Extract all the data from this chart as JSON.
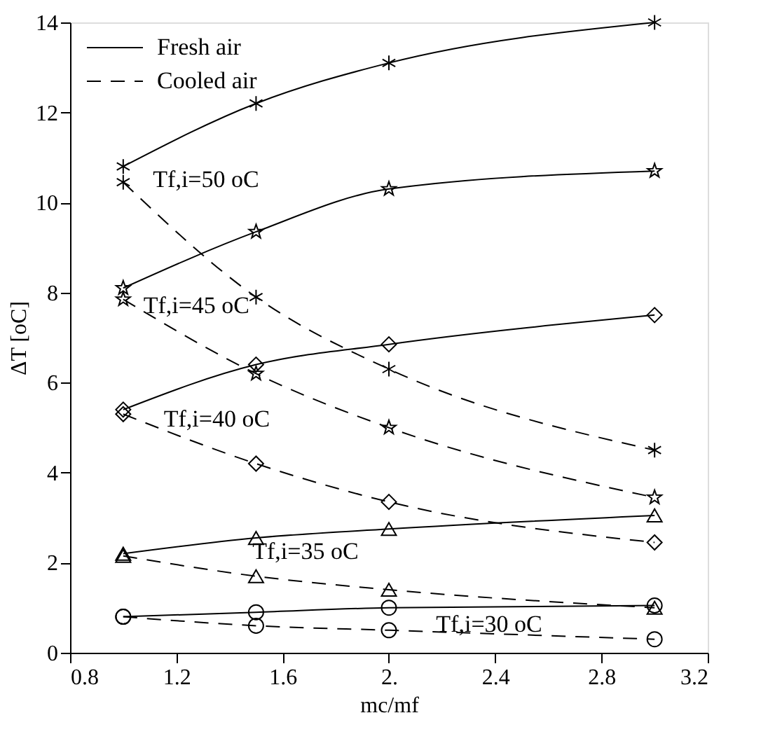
{
  "chart_data": {
    "type": "line",
    "xlabel": "mc/mf",
    "ylabel": "ΔT [oC]",
    "x": [
      1,
      1.5,
      2,
      3
    ],
    "xlim": [
      0.8,
      3.2
    ],
    "xticks": [
      0.8,
      1.2,
      1.6,
      {
        "value": 2,
        "label": "2."
      },
      2.4,
      2.8,
      3.2
    ],
    "ylim": [
      0,
      14
    ],
    "yticks": [
      0,
      2,
      4,
      6,
      8,
      10,
      12,
      14
    ],
    "grid": false,
    "legend": "top left",
    "series": [
      {
        "name": "Fresh air",
        "color": "#000000",
        "line_style": "solid",
        "marker": "cross",
        "values": [
          10.8,
          12.2,
          13.1,
          14.0
        ]
      },
      {
        "name": "Cooled air",
        "color": "#000000",
        "line_style": "dashed",
        "marker": "cross",
        "values": [
          10.45,
          7.9,
          6.3,
          4.5
        ]
      },
      {
        "color": "#000000",
        "line_style": "solid",
        "marker": "star",
        "values": [
          8.1,
          9.35,
          10.3,
          10.7
        ]
      },
      {
        "color": "#000000",
        "line_style": "dashed",
        "marker": "star",
        "values": [
          7.85,
          6.2,
          5.0,
          3.45
        ]
      },
      {
        "color": "#000000",
        "line_style": "solid",
        "marker": "diamond",
        "values": [
          5.4,
          6.4,
          6.85,
          7.5
        ]
      },
      {
        "color": "#000000",
        "line_style": "dashed",
        "marker": "diamond",
        "values": [
          5.3,
          4.2,
          3.35,
          2.45
        ]
      },
      {
        "color": "#000000",
        "line_style": "solid",
        "marker": "triangle",
        "values": [
          2.2,
          2.55,
          2.75,
          3.05
        ]
      },
      {
        "color": "#000000",
        "line_style": "dashed",
        "marker": "triangle",
        "values": [
          2.15,
          1.7,
          1.4,
          1.0
        ]
      },
      {
        "color": "#000000",
        "line_style": "solid",
        "marker": "circle",
        "values": [
          0.8,
          0.9,
          1.0,
          1.05
        ]
      },
      {
        "color": "#000000",
        "line_style": "dashed",
        "marker": "circle",
        "values": [
          0.8,
          0.6,
          0.5,
          0.3
        ]
      }
    ],
    "annotations": [
      "Tf,i=50 oC",
      "Tf,i=45 oC",
      "Tf,i=40 oC",
      "Tf,i=35 oC",
      "Tf,i=30 oC"
    ]
  }
}
